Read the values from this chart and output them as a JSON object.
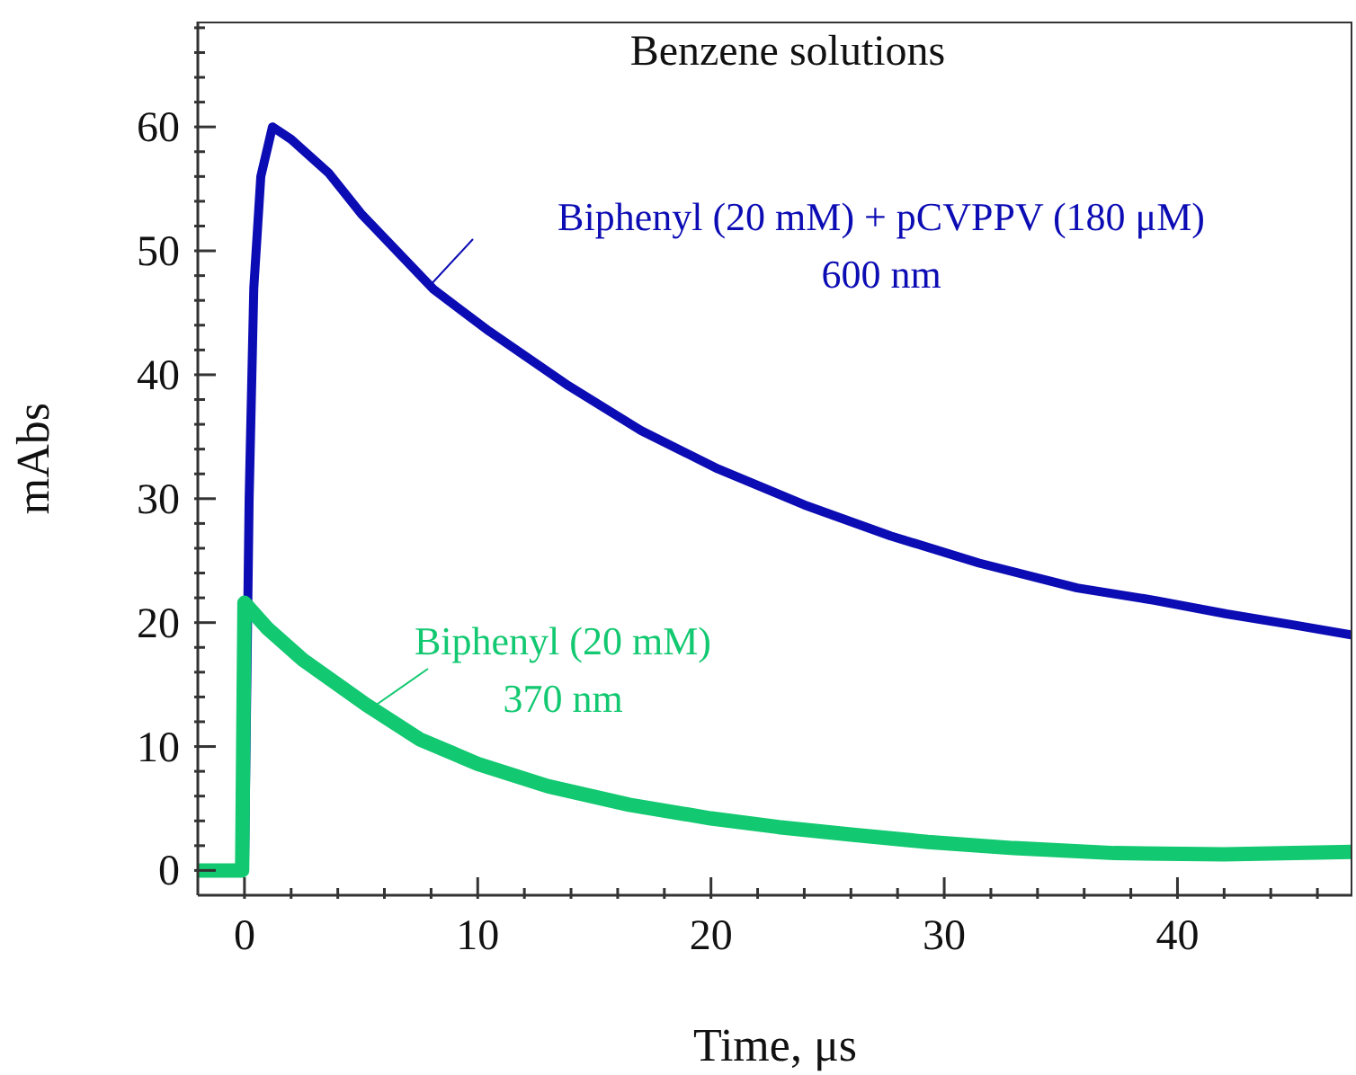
{
  "chart_data": {
    "type": "line",
    "title": "Benzene solutions",
    "xlabel": "Time, μs",
    "ylabel": "mAbs",
    "xlim": [
      -2,
      47.5
    ],
    "ylim": [
      -2,
      68.5
    ],
    "xticks": [
      0,
      {
        "value": 2,
        "label": null
      },
      {
        "value": 4,
        "label": null
      },
      {
        "value": 6,
        "label": null
      },
      {
        "value": 8,
        "label": null
      },
      10,
      {
        "value": 12,
        "label": null
      },
      {
        "value": 14,
        "label": null
      },
      {
        "value": 16,
        "label": null
      },
      {
        "value": 18,
        "label": null
      },
      20,
      {
        "value": 22,
        "label": null
      },
      {
        "value": 24,
        "label": null
      },
      {
        "value": 26,
        "label": null
      },
      {
        "value": 28,
        "label": null
      },
      30,
      {
        "value": 32,
        "label": null
      },
      {
        "value": 34,
        "label": null
      },
      {
        "value": 36,
        "label": null
      },
      {
        "value": 38,
        "label": null
      },
      40,
      {
        "value": 42,
        "label": null
      },
      {
        "value": 44,
        "label": null
      },
      {
        "value": 46,
        "label": null
      }
    ],
    "yticks": [
      0,
      {
        "value": 2,
        "label": null
      },
      {
        "value": 4,
        "label": null
      },
      {
        "value": 6,
        "label": null
      },
      {
        "value": 8,
        "label": null
      },
      10,
      {
        "value": 12,
        "label": null
      },
      {
        "value": 14,
        "label": null
      },
      {
        "value": 16,
        "label": null
      },
      {
        "value": 18,
        "label": null
      },
      20,
      {
        "value": 22,
        "label": null
      },
      {
        "value": 24,
        "label": null
      },
      {
        "value": 26,
        "label": null
      },
      {
        "value": 28,
        "label": null
      },
      30,
      {
        "value": 32,
        "label": null
      },
      {
        "value": 34,
        "label": null
      },
      {
        "value": 36,
        "label": null
      },
      {
        "value": 38,
        "label": null
      },
      40,
      {
        "value": 42,
        "label": null
      },
      {
        "value": 44,
        "label": null
      },
      {
        "value": 46,
        "label": null
      },
      {
        "value": 48,
        "label": null
      },
      50,
      {
        "value": 52,
        "label": null
      },
      {
        "value": 54,
        "label": null
      },
      {
        "value": 56,
        "label": null
      },
      {
        "value": 58,
        "label": null
      },
      60,
      {
        "value": 62,
        "label": null
      },
      {
        "value": 64,
        "label": null
      },
      {
        "value": 66,
        "label": null
      },
      {
        "value": 68,
        "label": null
      }
    ],
    "marker": "none",
    "line_style": "solid",
    "annotations": [
      "600 nm",
      "370 nm"
    ],
    "series": [
      {
        "name": "Biphenyl (20 mM) + pCVPPV (180 μM)",
        "color": "#0c0cb4",
        "x": [
          0,
          0.2,
          0.4,
          0.7,
          1.2,
          2,
          3.6,
          5,
          8.1,
          10.5,
          13.9,
          17,
          20.3,
          24,
          27.7,
          31.5,
          35.7,
          39,
          42.1,
          45,
          47.5
        ],
        "values": [
          0,
          30,
          47,
          56,
          60,
          59,
          56.3,
          53,
          46.9,
          43.5,
          39.1,
          35.5,
          32.4,
          29.5,
          27,
          24.8,
          22.8,
          21.8,
          20.7,
          19.8,
          19
        ]
      },
      {
        "name": "Biphenyl (20 mM)",
        "color": "#12c870",
        "x": [
          -2,
          -1,
          -0.1,
          0,
          1,
          2.5,
          5.2,
          7.5,
          10,
          13,
          16.5,
          20,
          22.9,
          26,
          29.3,
          33,
          37.3,
          42,
          47.5
        ],
        "values": [
          0,
          0,
          0,
          21.6,
          19.5,
          17,
          13.4,
          10.6,
          8.6,
          6.8,
          5.3,
          4.2,
          3.5,
          2.9,
          2.3,
          1.8,
          1.4,
          1.3,
          1.5
        ]
      }
    ]
  }
}
